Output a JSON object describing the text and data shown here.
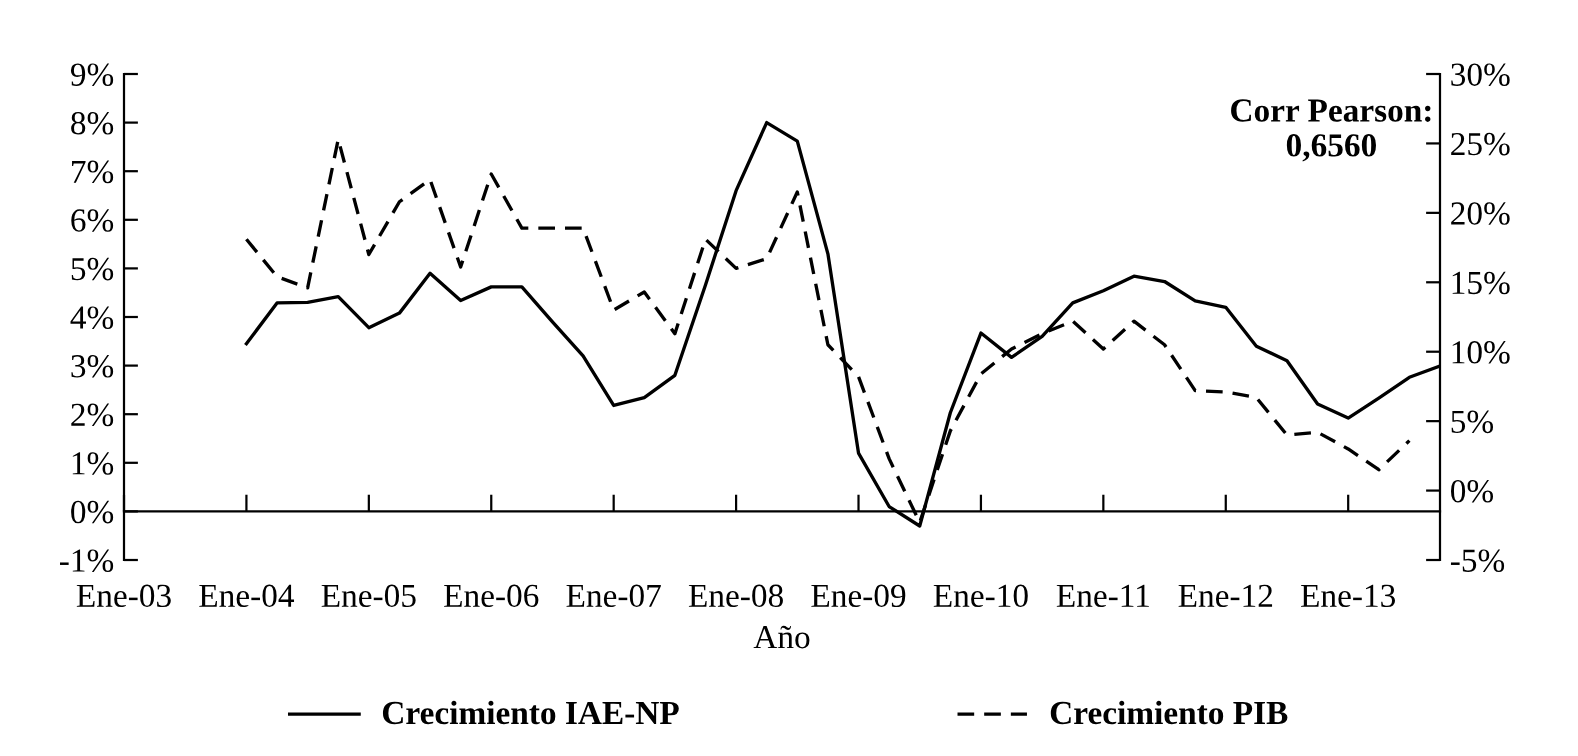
{
  "chart_data": {
    "type": "line",
    "xlabel": "Año",
    "categories": [
      "Ene-03",
      null,
      null,
      null,
      "Ene-04",
      null,
      null,
      null,
      "Ene-05",
      null,
      null,
      null,
      "Ene-06",
      null,
      null,
      null,
      "Ene-07",
      null,
      null,
      null,
      "Ene-08",
      null,
      null,
      null,
      "Ene-09",
      null,
      null,
      null,
      "Ene-10",
      null,
      null,
      null,
      "Ene-11",
      null,
      null,
      null,
      "Ene-12",
      null,
      null,
      null,
      "Ene-13",
      null,
      null,
      null
    ],
    "series": [
      {
        "name": "Crecimiento IAE-NP",
        "color": "#000000",
        "line_style": "solid",
        "values": [
          null,
          null,
          null,
          null,
          3.45,
          4.29,
          4.3,
          4.42,
          3.78,
          4.08,
          4.9,
          4.34,
          4.62,
          4.62,
          3.9,
          3.2,
          2.18,
          2.34,
          2.8,
          4.66,
          6.6,
          8.0,
          7.62,
          5.3,
          1.2,
          0.1,
          -0.3,
          2.03,
          3.67,
          3.17,
          3.6,
          4.29,
          4.54,
          4.84,
          4.73,
          4.33,
          4.2,
          3.4,
          3.1,
          2.21,
          1.92,
          2.33,
          2.76,
          2.99
        ]
      },
      {
        "name": "Crecimiento PIB",
        "color": "#000000",
        "line_style": "dashed",
        "axis": "y2",
        "values": [
          null,
          null,
          null,
          null,
          18.1,
          15.4,
          14.6,
          25.3,
          17.0,
          20.8,
          22.4,
          16.1,
          22.8,
          18.9,
          18.9,
          18.9,
          13.0,
          14.3,
          11.3,
          18.1,
          16.0,
          16.7,
          21.5,
          10.5,
          8.2,
          2.3,
          -2.3,
          4.3,
          8.4,
          10.2,
          11.3,
          12.2,
          10.2,
          12.2,
          10.5,
          7.2,
          7.1,
          6.7,
          4.0,
          4.2,
          3.0,
          1.5,
          3.6,
          null
        ]
      }
    ],
    "ylim": [
      -1,
      9
    ],
    "yticks": [
      {
        "value": -1,
        "label": "-1%"
      },
      {
        "value": 0,
        "label": "0%"
      },
      {
        "value": 1,
        "label": "1%"
      },
      {
        "value": 2,
        "label": "2%"
      },
      {
        "value": 3,
        "label": "3%"
      },
      {
        "value": 4,
        "label": "4%"
      },
      {
        "value": 5,
        "label": "5%"
      },
      {
        "value": 6,
        "label": "6%"
      },
      {
        "value": 7,
        "label": "7%"
      },
      {
        "value": 8,
        "label": "8%"
      },
      {
        "value": 9,
        "label": "9%"
      }
    ],
    "y2lim": [
      -5,
      30
    ],
    "y2ticks": [
      {
        "value": -5,
        "label": "-5%"
      },
      {
        "value": 0,
        "label": "0%"
      },
      {
        "value": 5,
        "label": "5%"
      },
      {
        "value": 10,
        "label": "10%"
      },
      {
        "value": 15,
        "label": "15%"
      },
      {
        "value": 20,
        "label": "20%"
      },
      {
        "value": 25,
        "label": "25%"
      },
      {
        "value": 30,
        "label": "30%"
      }
    ],
    "annotations": [
      "Corr Pearson:\n0,6560"
    ],
    "legend": "bottom",
    "grid": false,
    "marker": "none"
  }
}
